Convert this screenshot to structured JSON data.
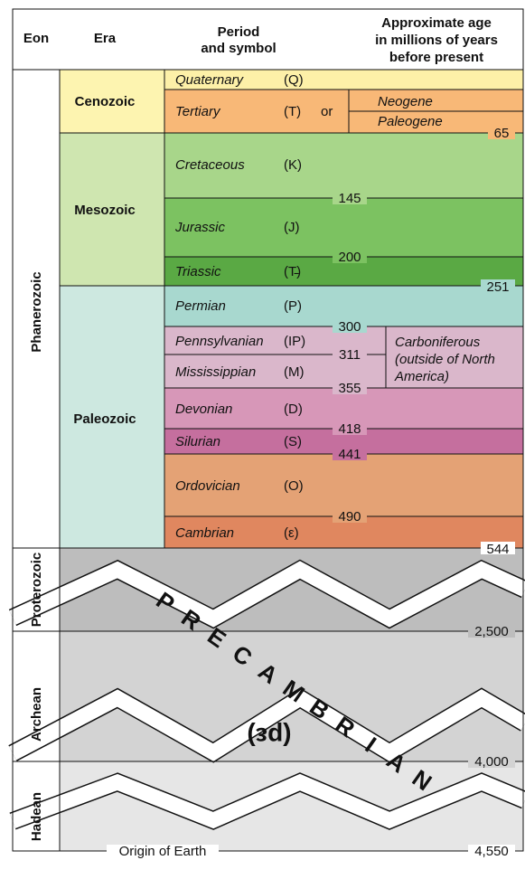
{
  "header": {
    "eon": "Eon",
    "era": "Era",
    "period_line1": "Period",
    "period_line2": "and symbol",
    "age_line1": "Approximate age",
    "age_line2": "in millions of years",
    "age_line3": "before present"
  },
  "eons": {
    "phanerozoic": "Phanerozoic",
    "proterozoic": "Proterozoic",
    "archean": "Archean",
    "hadean": "Hadean"
  },
  "eras": {
    "cenozoic": "Cenozoic",
    "mesozoic": "Mesozoic",
    "paleozoic": "Paleozoic"
  },
  "periods": {
    "quaternary": {
      "name": "Quaternary",
      "symbol": "(Q)"
    },
    "tertiary": {
      "name": "Tertiary",
      "symbol": "(T)",
      "or": "or"
    },
    "neogene": "Neogene",
    "paleogene": "Paleogene",
    "cretaceous": {
      "name": "Cretaceous",
      "symbol": "(K)"
    },
    "jurassic": {
      "name": "Jurassic",
      "symbol": "(J)"
    },
    "triassic": {
      "name": "Triassic",
      "symbol": "(T̵)"
    },
    "permian": {
      "name": "Permian",
      "symbol": "(P)"
    },
    "pennsylvanian": {
      "name": "Pennsylvanian",
      "symbol": "(IP)"
    },
    "mississippian": {
      "name": "Mississippian",
      "symbol": "(M)"
    },
    "carboniferous_line1": "Carboniferous",
    "carboniferous_line2": "(outside of North",
    "carboniferous_line3": "America)",
    "devonian": {
      "name": "Devonian",
      "symbol": "(D)"
    },
    "silurian": {
      "name": "Silurian",
      "symbol": "(S)"
    },
    "ordovician": {
      "name": "Ordovician",
      "symbol": "(O)"
    },
    "cambrian": {
      "name": "Cambrian",
      "symbol": "(ε)"
    }
  },
  "ages": {
    "a65": "65",
    "a145": "145",
    "a200": "200",
    "a251": "251",
    "a300": "300",
    "a311": "311",
    "a355": "355",
    "a418": "418",
    "a441": "441",
    "a490": "490",
    "a544": "544",
    "a2500": "2,500",
    "a4000": "4,000",
    "a4550": "4,550"
  },
  "precambrian": {
    "letters": [
      "P",
      "R",
      "E",
      "C",
      "A",
      "M",
      "B",
      "R",
      "I",
      "A",
      "N"
    ],
    "symbol": "(pε)"
  },
  "origin": "Origin of Earth",
  "colors": {
    "quaternary": "#fdf0a8",
    "tertiary": "#f8b877",
    "cenozoic": "#fdf4b0",
    "mesozoic_era": "#cfe6b0",
    "cretaceous": "#a8d68a",
    "jurassic": "#7cc261",
    "triassic": "#5aa944",
    "paleozoic_era": "#cde8e0",
    "permian": "#a8d8cf",
    "pennsylvanian": "#dab7cb",
    "devonian": "#d797b8",
    "silurian": "#c56f9e",
    "ordovician": "#e4a275",
    "cambrian": "#e0875f",
    "proterozoic": "#bdbdbd",
    "archean": "#d3d3d3",
    "hadean": "#e6e6e6"
  }
}
